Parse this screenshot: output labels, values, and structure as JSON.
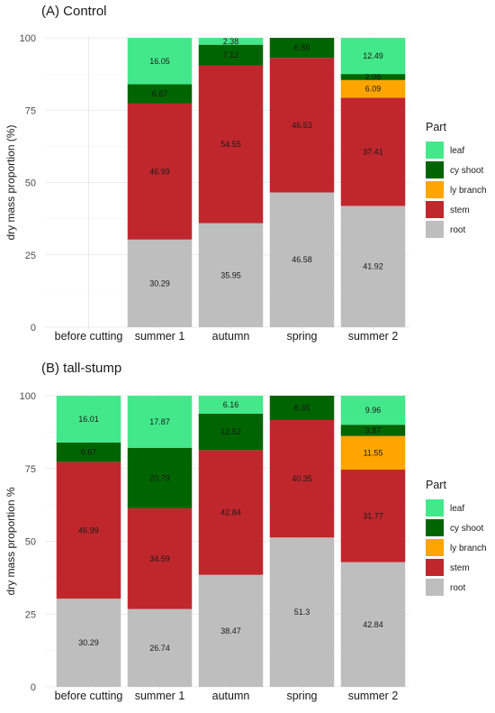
{
  "chart_data": [
    {
      "type": "bar",
      "stacked": true,
      "title": "(A) Control",
      "xlabel": "",
      "ylabel": "dry mass proportion (%)",
      "ylim": [
        0,
        100
      ],
      "yticks": [
        0,
        25,
        50,
        75,
        100
      ],
      "grid": true,
      "categories": [
        "before cutting",
        "summer 1",
        "autumn",
        "spring",
        "summer 2"
      ],
      "series": [
        {
          "name": "root",
          "color": "#bebebe",
          "values": [
            null,
            30.29,
            35.95,
            46.58,
            41.92
          ],
          "labels": [
            "",
            "30.29",
            "35.95",
            "46.58",
            "41.92"
          ]
        },
        {
          "name": "stem",
          "color": "#c0272d",
          "values": [
            null,
            46.99,
            54.55,
            46.53,
            37.41
          ],
          "labels": [
            "",
            "46.99",
            "54.55",
            "46.53",
            "37.41"
          ]
        },
        {
          "name": "ly branch",
          "color": "#ffa500",
          "values": [
            null,
            0,
            0,
            0,
            6.09
          ],
          "labels": [
            "",
            "",
            "",
            "",
            "6.09"
          ]
        },
        {
          "name": "cy shoot",
          "color": "#006400",
          "values": [
            null,
            6.67,
            7.12,
            6.89,
            2.08
          ],
          "labels": [
            "",
            "6.67",
            "7.12",
            "6.89",
            "2.08"
          ]
        },
        {
          "name": "leaf",
          "color": "#43e88a",
          "values": [
            null,
            16.05,
            2.38,
            0,
            12.49
          ],
          "labels": [
            "",
            "16.05",
            "2.38",
            "",
            "12.49"
          ]
        }
      ],
      "legend": {
        "title": "Part",
        "position": "right",
        "entries": [
          "leaf",
          "cy shoot",
          "ly branch",
          "stem",
          "root"
        ]
      }
    },
    {
      "type": "bar",
      "stacked": true,
      "title": "(B) tall-stump",
      "xlabel": "",
      "ylabel": "dry mass proportion %",
      "ylim": [
        0,
        100
      ],
      "yticks": [
        0,
        25,
        50,
        75,
        100
      ],
      "grid": true,
      "categories": [
        "before cutting",
        "summer 1",
        "autumn",
        "spring",
        "summer 2"
      ],
      "series": [
        {
          "name": "root",
          "color": "#bebebe",
          "values": [
            30.29,
            26.74,
            38.47,
            51.3,
            42.84
          ],
          "labels": [
            "30.29",
            "26.74",
            "38.47",
            "51.3",
            "42.84"
          ]
        },
        {
          "name": "stem",
          "color": "#c0272d",
          "values": [
            46.99,
            34.59,
            42.84,
            40.35,
            31.77
          ],
          "labels": [
            "46.99",
            "34.59",
            "42.84",
            "40.35",
            "31.77"
          ]
        },
        {
          "name": "ly branch",
          "color": "#ffa500",
          "values": [
            0,
            0,
            0,
            0,
            11.55
          ],
          "labels": [
            "",
            "",
            "",
            "",
            "11.55"
          ]
        },
        {
          "name": "cy shoot",
          "color": "#006400",
          "values": [
            6.67,
            20.79,
            12.52,
            8.35,
            3.87
          ],
          "labels": [
            "6.67",
            "20.79",
            "12.52",
            "8.35",
            "3.87"
          ]
        },
        {
          "name": "leaf",
          "color": "#43e88a",
          "values": [
            16.01,
            17.87,
            6.16,
            0,
            9.96
          ],
          "labels": [
            "16.01",
            "17.87",
            "6.16",
            "",
            "9.96"
          ]
        }
      ],
      "legend": {
        "title": "Part",
        "position": "right",
        "entries": [
          "leaf",
          "cy shoot",
          "ly branch",
          "stem",
          "root"
        ]
      }
    }
  ]
}
